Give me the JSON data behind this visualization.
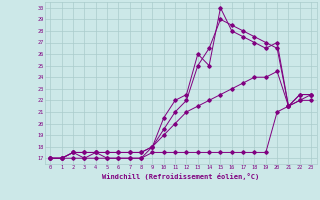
{
  "xlabel": "Windchill (Refroidissement éolien,°C)",
  "bg_color": "#cce8e8",
  "line_color": "#800080",
  "grid_color": "#aacccc",
  "tick_label_color": "#800080",
  "xlabel_color": "#800080",
  "xlim": [
    -0.5,
    23.5
  ],
  "ylim": [
    16.5,
    30.5
  ],
  "yticks": [
    17,
    18,
    19,
    20,
    21,
    22,
    23,
    24,
    25,
    26,
    27,
    28,
    29,
    30
  ],
  "xticks": [
    0,
    1,
    2,
    3,
    4,
    5,
    6,
    7,
    8,
    9,
    10,
    11,
    12,
    13,
    14,
    15,
    16,
    17,
    18,
    19,
    20,
    21,
    22,
    23
  ],
  "series": [
    {
      "x": [
        0,
        1,
        2,
        3,
        4,
        5,
        6,
        7,
        8,
        9,
        10,
        11,
        12,
        13,
        14,
        15,
        16,
        17,
        18,
        19,
        20,
        21,
        22,
        23
      ],
      "y": [
        17,
        17,
        17,
        17,
        17,
        17,
        17,
        17,
        17,
        17.5,
        17.5,
        17.5,
        17.5,
        17.5,
        17.5,
        17.5,
        17.5,
        17.5,
        17.5,
        17.5,
        21,
        21.5,
        22,
        22
      ]
    },
    {
      "x": [
        0,
        1,
        2,
        3,
        4,
        5,
        6,
        7,
        8,
        9,
        10,
        11,
        12,
        13,
        14,
        15,
        16,
        17,
        18,
        19,
        20,
        21,
        22,
        23
      ],
      "y": [
        17,
        17,
        17.5,
        17.5,
        17.5,
        17.5,
        17.5,
        17.5,
        17.5,
        18,
        19,
        20,
        21,
        21.5,
        22,
        22.5,
        23,
        23.5,
        24,
        24,
        24.5,
        21.5,
        22,
        22.5
      ]
    },
    {
      "x": [
        0,
        1,
        2,
        3,
        4,
        5,
        6,
        7,
        8,
        9,
        10,
        11,
        12,
        13,
        14,
        15,
        16,
        17,
        18,
        19,
        20,
        21,
        22,
        23
      ],
      "y": [
        17,
        17,
        17.5,
        17,
        17.5,
        17,
        17,
        17,
        17,
        18,
        20.5,
        22,
        22.5,
        26,
        25,
        30,
        28,
        27.5,
        27,
        26.5,
        27,
        21.5,
        22.5,
        22.5
      ]
    },
    {
      "x": [
        0,
        1,
        2,
        3,
        4,
        5,
        6,
        7,
        8,
        9,
        10,
        11,
        12,
        13,
        14,
        15,
        16,
        17,
        18,
        19,
        20,
        21,
        22,
        23
      ],
      "y": [
        17,
        17,
        17.5,
        17.5,
        17.5,
        17.5,
        17.5,
        17.5,
        17.5,
        18,
        19.5,
        21,
        22,
        25,
        26.5,
        29,
        28.5,
        28,
        27.5,
        27,
        26.5,
        21.5,
        22.5,
        22.5
      ]
    }
  ]
}
